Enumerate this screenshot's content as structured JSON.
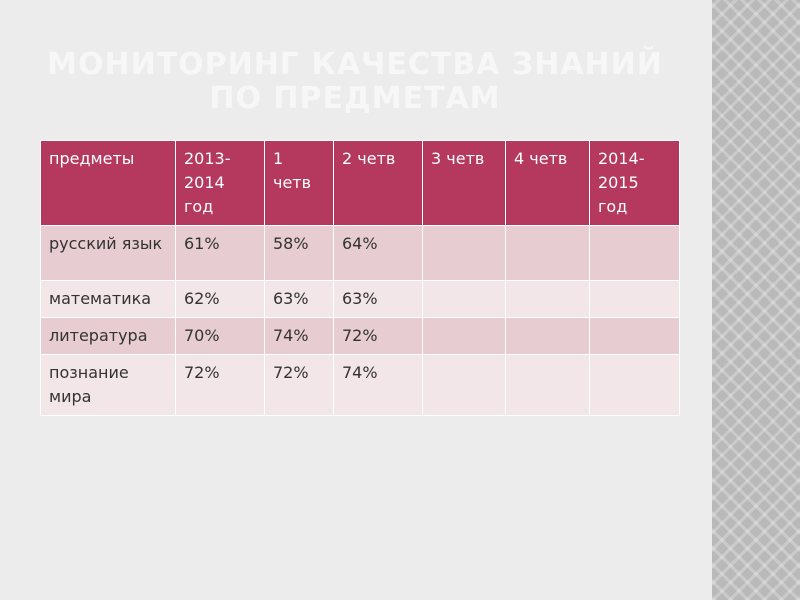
{
  "title": "МОНИТОРИНГ КАЧЕСТВА ЗНАНИЙ ПО ПРЕДМЕТАМ",
  "table": {
    "header": [
      "предметы",
      "2013-2014 год",
      "1 четв",
      "2 четв",
      "3 четв",
      "4 четв",
      "2014-2015 год"
    ],
    "rows": [
      [
        "русский язык",
        "61%",
        "58%",
        "64%"
      ],
      [
        "математика",
        "62%",
        "63%",
        "63%"
      ],
      [
        "литература",
        "70%",
        "74%",
        "72%"
      ],
      [
        "познание мира",
        "72%",
        "72%",
        "74%"
      ]
    ]
  }
}
